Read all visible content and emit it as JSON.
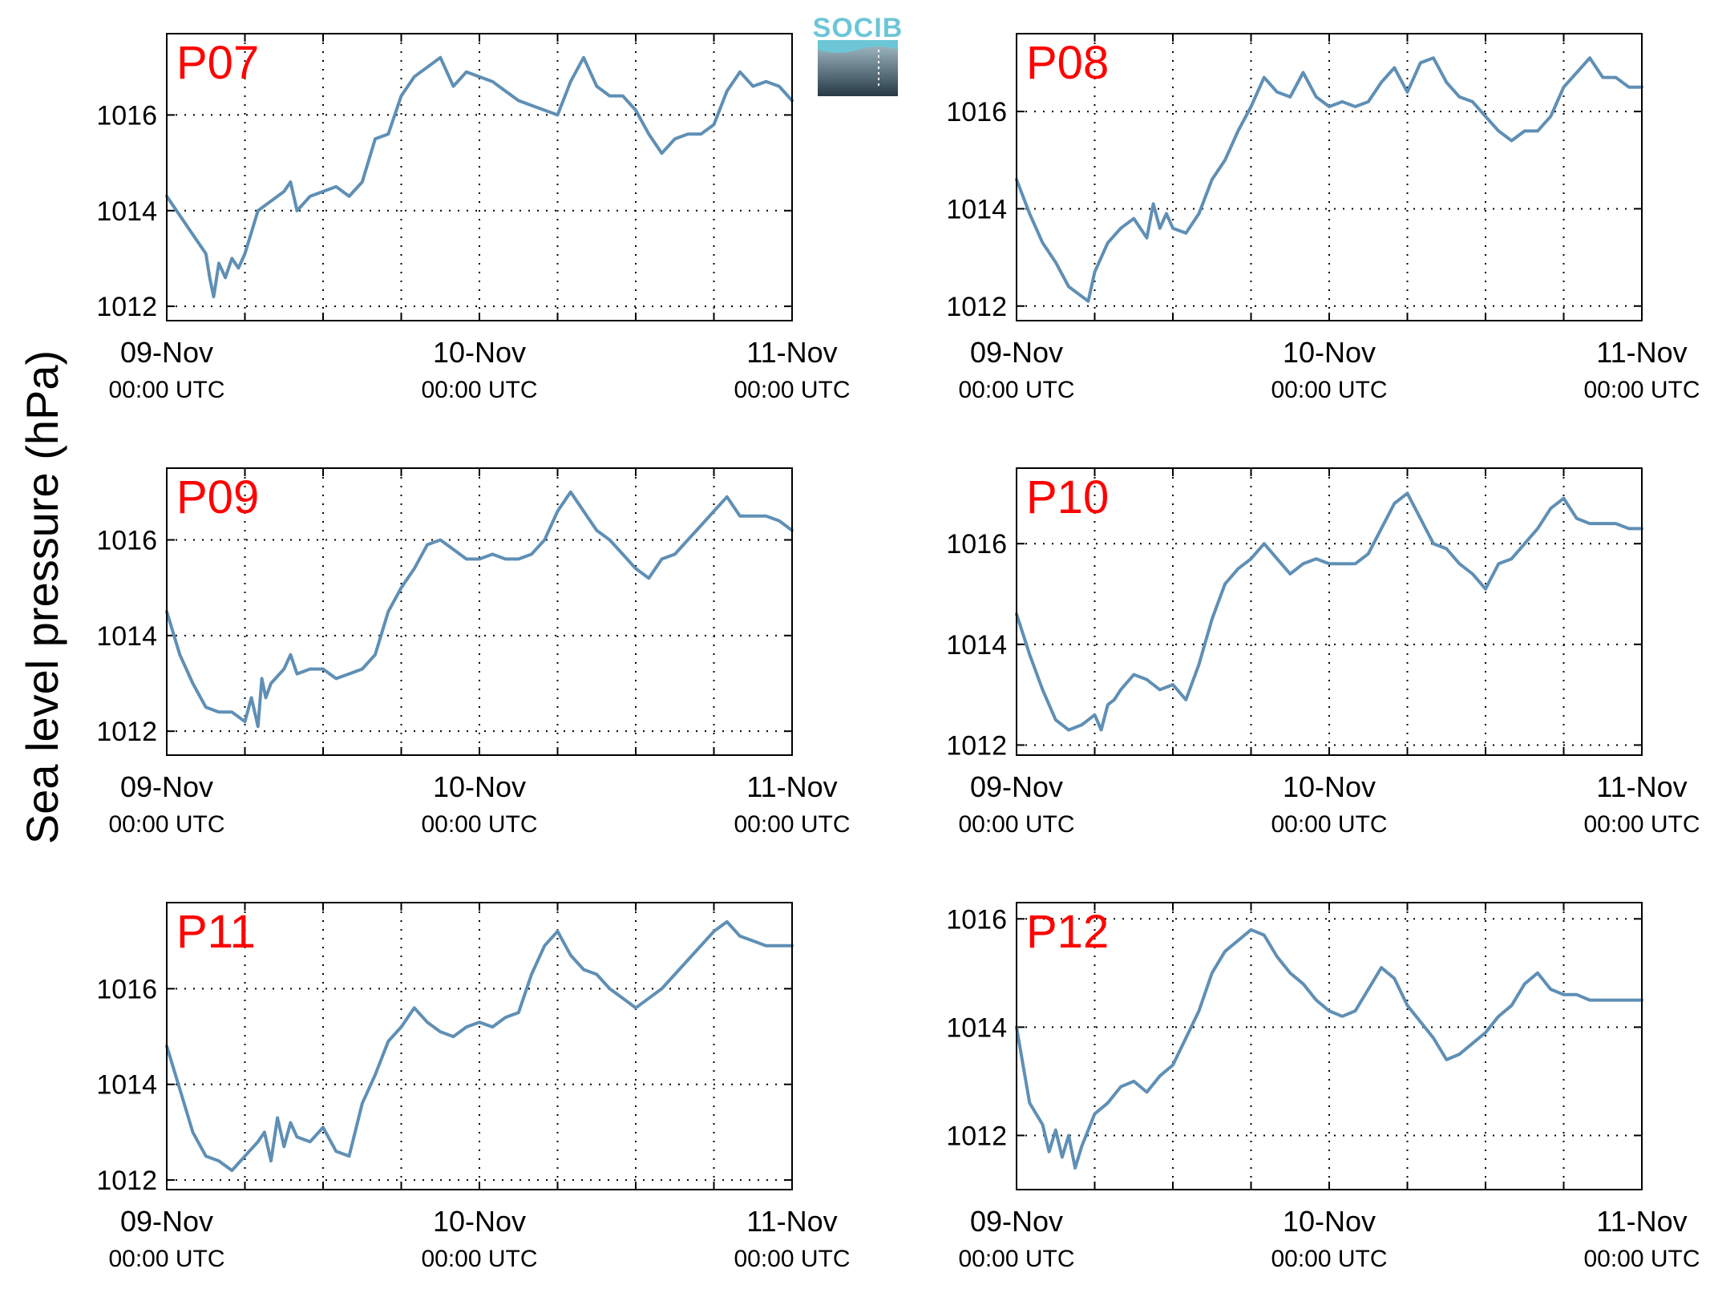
{
  "logo": {
    "text": "SOCIB",
    "text_color": "#6cc6d6"
  },
  "chart_data": {
    "type": "line",
    "ylabel": "Sea level pressure (hPa)",
    "line_color": "#5f8fb5",
    "label_color": "#ff0000",
    "x_ticks": [
      {
        "date": "09-Nov",
        "time": "00:00 UTC",
        "hour": 0
      },
      {
        "date": "10-Nov",
        "time": "00:00 UTC",
        "hour": 24
      },
      {
        "date": "11-Nov",
        "time": "00:00 UTC",
        "hour": 48
      }
    ],
    "x_grid_hours": [
      6,
      12,
      18,
      24,
      30,
      36,
      42
    ],
    "xlim_hours": [
      0,
      48
    ],
    "grid": true,
    "panels": [
      {
        "name": "P07",
        "ylim": [
          1011.7,
          1017.7
        ],
        "yticks": [
          1012,
          1014,
          1016
        ],
        "x": [
          0,
          1,
          2,
          3,
          3.3,
          3.6,
          4,
          4.5,
          5,
          5.5,
          6,
          7,
          8,
          9,
          9.5,
          10,
          11,
          12,
          13,
          14,
          15,
          16,
          17,
          18,
          19,
          20,
          21,
          21.5,
          22,
          23,
          24,
          25,
          26,
          27,
          28,
          29,
          30,
          31,
          32,
          33,
          34,
          35,
          36,
          37,
          38,
          39,
          40,
          41,
          42,
          43,
          44,
          45,
          46,
          47,
          48
        ],
        "y": [
          1014.3,
          1013.9,
          1013.5,
          1013.1,
          1012.6,
          1012.2,
          1012.9,
          1012.6,
          1013.0,
          1012.8,
          1013.1,
          1014.0,
          1014.2,
          1014.4,
          1014.6,
          1014.0,
          1014.3,
          1014.4,
          1014.5,
          1014.3,
          1014.6,
          1015.5,
          1015.6,
          1016.4,
          1016.8,
          1017.0,
          1017.2,
          1016.9,
          1016.6,
          1016.9,
          1016.8,
          1016.7,
          1016.5,
          1016.3,
          1016.2,
          1016.1,
          1016.0,
          1016.7,
          1017.2,
          1016.6,
          1016.4,
          1016.4,
          1016.1,
          1015.6,
          1015.2,
          1015.5,
          1015.6,
          1015.6,
          1015.8,
          1016.5,
          1016.9,
          1016.6,
          1016.7,
          1016.6,
          1016.3
        ]
      },
      {
        "name": "P08",
        "ylim": [
          1011.7,
          1017.6
        ],
        "yticks": [
          1012,
          1014,
          1016
        ],
        "x": [
          0,
          1,
          2,
          3,
          4,
          5,
          5.5,
          6,
          7,
          8,
          9,
          10,
          10.5,
          11,
          11.5,
          12,
          13,
          14,
          15,
          16,
          17,
          18,
          19,
          20,
          21,
          22,
          23,
          24,
          25,
          26,
          27,
          28,
          29,
          30,
          31,
          32,
          33,
          34,
          35,
          36,
          37,
          38,
          39,
          40,
          41,
          42,
          43,
          44,
          45,
          46,
          47,
          48
        ],
        "y": [
          1014.6,
          1013.9,
          1013.3,
          1012.9,
          1012.4,
          1012.2,
          1012.1,
          1012.7,
          1013.3,
          1013.6,
          1013.8,
          1013.4,
          1014.1,
          1013.6,
          1013.9,
          1013.6,
          1013.5,
          1013.9,
          1014.6,
          1015.0,
          1015.6,
          1016.1,
          1016.7,
          1016.4,
          1016.3,
          1016.8,
          1016.3,
          1016.1,
          1016.2,
          1016.1,
          1016.2,
          1016.6,
          1016.9,
          1016.4,
          1017.0,
          1017.1,
          1016.6,
          1016.3,
          1016.2,
          1015.9,
          1015.6,
          1015.4,
          1015.6,
          1015.6,
          1015.9,
          1016.5,
          1016.8,
          1017.1,
          1016.7,
          1016.7,
          1016.5,
          1016.5
        ]
      },
      {
        "name": "P09",
        "ylim": [
          1011.5,
          1017.5
        ],
        "yticks": [
          1012,
          1014,
          1016
        ],
        "x": [
          0,
          1,
          2,
          3,
          4,
          5,
          6,
          6.5,
          7,
          7.3,
          7.6,
          8,
          9,
          9.5,
          10,
          11,
          12,
          13,
          14,
          15,
          16,
          17,
          18,
          19,
          20,
          21,
          22,
          23,
          24,
          25,
          26,
          27,
          28,
          29,
          30,
          31,
          32,
          33,
          34,
          35,
          36,
          37,
          38,
          39,
          40,
          41,
          42,
          43,
          44,
          45,
          46,
          47,
          48
        ],
        "y": [
          1014.5,
          1013.6,
          1013.0,
          1012.5,
          1012.4,
          1012.4,
          1012.2,
          1012.7,
          1012.1,
          1013.1,
          1012.7,
          1013.0,
          1013.3,
          1013.6,
          1013.2,
          1013.3,
          1013.3,
          1013.1,
          1013.2,
          1013.3,
          1013.6,
          1014.5,
          1015.0,
          1015.4,
          1015.9,
          1016.0,
          1015.8,
          1015.6,
          1015.6,
          1015.7,
          1015.6,
          1015.6,
          1015.7,
          1016.0,
          1016.6,
          1017.0,
          1016.6,
          1016.2,
          1016.0,
          1015.7,
          1015.4,
          1015.2,
          1015.6,
          1015.7,
          1016.0,
          1016.3,
          1016.6,
          1016.9,
          1016.5,
          1016.5,
          1016.5,
          1016.4,
          1016.2
        ]
      },
      {
        "name": "P10",
        "ylim": [
          1011.8,
          1017.5
        ],
        "yticks": [
          1012,
          1014,
          1016
        ],
        "x": [
          0,
          1,
          2,
          3,
          4,
          5,
          6,
          6.5,
          7,
          7.5,
          8,
          9,
          10,
          11,
          12,
          13,
          14,
          15,
          16,
          17,
          18,
          19,
          20,
          21,
          22,
          23,
          24,
          25,
          26,
          27,
          28,
          29,
          30,
          31,
          32,
          33,
          34,
          35,
          36,
          37,
          38,
          39,
          40,
          41,
          42,
          43,
          44,
          45,
          46,
          47,
          48
        ],
        "y": [
          1014.6,
          1013.8,
          1013.1,
          1012.5,
          1012.3,
          1012.4,
          1012.6,
          1012.3,
          1012.8,
          1012.9,
          1013.1,
          1013.4,
          1013.3,
          1013.1,
          1013.2,
          1012.9,
          1013.6,
          1014.5,
          1015.2,
          1015.5,
          1015.7,
          1016.0,
          1015.7,
          1015.4,
          1015.6,
          1015.7,
          1015.6,
          1015.6,
          1015.6,
          1015.8,
          1016.3,
          1016.8,
          1017.0,
          1016.5,
          1016.0,
          1015.9,
          1015.6,
          1015.4,
          1015.1,
          1015.6,
          1015.7,
          1016.0,
          1016.3,
          1016.7,
          1016.9,
          1016.5,
          1016.4,
          1016.4,
          1016.4,
          1016.3,
          1016.3
        ]
      },
      {
        "name": "P11",
        "ylim": [
          1011.8,
          1017.8
        ],
        "yticks": [
          1012,
          1014,
          1016
        ],
        "x": [
          0,
          1,
          2,
          3,
          4,
          5,
          6,
          7,
          7.5,
          8,
          8.5,
          9,
          9.5,
          10,
          11,
          12,
          13,
          14,
          15,
          16,
          17,
          18,
          19,
          20,
          21,
          22,
          23,
          24,
          25,
          26,
          27,
          28,
          29,
          30,
          31,
          32,
          33,
          34,
          35,
          36,
          37,
          38,
          39,
          40,
          41,
          42,
          43,
          44,
          45,
          46,
          47,
          48
        ],
        "y": [
          1014.8,
          1013.9,
          1013.0,
          1012.5,
          1012.4,
          1012.2,
          1012.5,
          1012.8,
          1013.0,
          1012.4,
          1013.3,
          1012.7,
          1013.2,
          1012.9,
          1012.8,
          1013.1,
          1012.6,
          1012.5,
          1013.6,
          1014.2,
          1014.9,
          1015.2,
          1015.6,
          1015.3,
          1015.1,
          1015.0,
          1015.2,
          1015.3,
          1015.2,
          1015.4,
          1015.5,
          1016.3,
          1016.9,
          1017.2,
          1016.7,
          1016.4,
          1016.3,
          1016.0,
          1015.8,
          1015.6,
          1015.8,
          1016.0,
          1016.3,
          1016.6,
          1016.9,
          1017.2,
          1017.4,
          1017.1,
          1017.0,
          1016.9,
          1016.9,
          1016.9
        ]
      },
      {
        "name": "P12",
        "ylim": [
          1011.0,
          1016.3
        ],
        "yticks": [
          1012,
          1014,
          1016
        ],
        "x": [
          0,
          0.5,
          1,
          2,
          2.5,
          3,
          3.5,
          4,
          4.5,
          5,
          5.5,
          6,
          7,
          8,
          9,
          10,
          11,
          12,
          13,
          14,
          15,
          16,
          17,
          18,
          19,
          20,
          21,
          22,
          23,
          24,
          25,
          26,
          27,
          28,
          29,
          30,
          31,
          32,
          33,
          34,
          35,
          36,
          37,
          38,
          39,
          40,
          41,
          42,
          43,
          44,
          45,
          46,
          47,
          48
        ],
        "y": [
          1014.0,
          1013.3,
          1012.6,
          1012.2,
          1011.7,
          1012.1,
          1011.6,
          1012.0,
          1011.4,
          1011.8,
          1012.1,
          1012.4,
          1012.6,
          1012.9,
          1013.0,
          1012.8,
          1013.1,
          1013.3,
          1013.8,
          1014.3,
          1015.0,
          1015.4,
          1015.6,
          1015.8,
          1015.7,
          1015.3,
          1015.0,
          1014.8,
          1014.5,
          1014.3,
          1014.2,
          1014.3,
          1014.7,
          1015.1,
          1014.9,
          1014.4,
          1014.1,
          1013.8,
          1013.4,
          1013.5,
          1013.7,
          1013.9,
          1014.2,
          1014.4,
          1014.8,
          1015.0,
          1014.7,
          1014.6,
          1014.6,
          1014.5,
          1014.5,
          1014.5,
          1014.5,
          1014.5
        ]
      }
    ]
  }
}
